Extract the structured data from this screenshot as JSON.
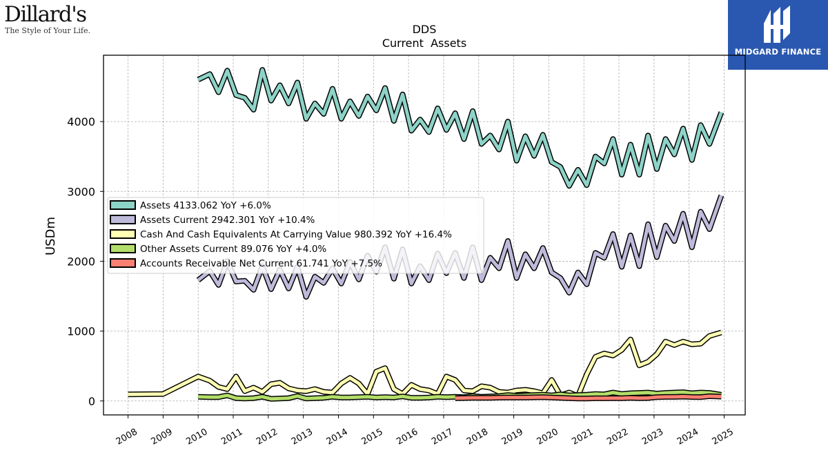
{
  "brand_left": {
    "name": "Dillard's",
    "tagline": "The Style of Your Life."
  },
  "brand_right": {
    "name": "MIDGARD FINANCE",
    "color": "#2a58b0"
  },
  "chart_data": {
    "type": "line",
    "title": "DDS",
    "subtitle": "Current  Assets",
    "ylabel": "USDm",
    "xlabel": "",
    "xlim": [
      2007.3,
      2025.6
    ],
    "ylim": [
      -200,
      4950
    ],
    "x_ticks": [
      2008,
      2009,
      2010,
      2011,
      2012,
      2013,
      2014,
      2015,
      2016,
      2017,
      2018,
      2019,
      2020,
      2021,
      2022,
      2023,
      2024,
      2025
    ],
    "y_ticks": [
      0,
      1000,
      2000,
      3000,
      4000
    ],
    "grid": true,
    "legend_position": "center-left",
    "series": [
      {
        "name": "Assets",
        "legend_label": "Assets  4133.062 YoY +6.0%",
        "color": "#8dd3c7",
        "x": [
          2010.0,
          2010.33,
          2010.58,
          2010.83,
          2011.08,
          2011.33,
          2011.58,
          2011.83,
          2012.08,
          2012.33,
          2012.58,
          2012.83,
          2013.08,
          2013.33,
          2013.58,
          2013.83,
          2014.08,
          2014.33,
          2014.58,
          2014.83,
          2015.08,
          2015.33,
          2015.58,
          2015.83,
          2016.08,
          2016.33,
          2016.58,
          2016.83,
          2017.08,
          2017.33,
          2017.58,
          2017.83,
          2018.08,
          2018.33,
          2018.58,
          2018.83,
          2019.08,
          2019.33,
          2019.58,
          2019.83,
          2020.08,
          2020.33,
          2020.58,
          2020.83,
          2021.08,
          2021.33,
          2021.58,
          2021.83,
          2022.08,
          2022.33,
          2022.58,
          2022.83,
          2023.08,
          2023.33,
          2023.58,
          2023.83,
          2024.08,
          2024.33,
          2024.58,
          2024.92
        ],
        "values": [
          4600,
          4680,
          4420,
          4730,
          4380,
          4340,
          4170,
          4740,
          4300,
          4520,
          4260,
          4560,
          4040,
          4260,
          4110,
          4470,
          4040,
          4290,
          4080,
          4360,
          4160,
          4480,
          4010,
          4390,
          3870,
          4030,
          3850,
          4190,
          3880,
          4120,
          3750,
          4150,
          3680,
          3800,
          3600,
          4000,
          3440,
          3790,
          3510,
          3810,
          3420,
          3350,
          3080,
          3310,
          3090,
          3500,
          3400,
          3750,
          3240,
          3670,
          3240,
          3800,
          3320,
          3750,
          3530,
          3900,
          3450,
          3950,
          3680,
          4133
        ]
      },
      {
        "name": "Assets Current",
        "legend_label": "Assets Current  2942.301 YoY +10.4%",
        "color": "#bebada",
        "x": [
          2010.0,
          2010.33,
          2010.58,
          2010.83,
          2011.08,
          2011.33,
          2011.58,
          2011.83,
          2012.08,
          2012.33,
          2012.58,
          2012.83,
          2013.08,
          2013.33,
          2013.58,
          2013.83,
          2014.08,
          2014.33,
          2014.58,
          2014.83,
          2015.08,
          2015.33,
          2015.58,
          2015.83,
          2016.08,
          2016.33,
          2016.58,
          2016.83,
          2017.08,
          2017.33,
          2017.58,
          2017.83,
          2018.08,
          2018.33,
          2018.58,
          2018.83,
          2019.08,
          2019.33,
          2019.58,
          2019.83,
          2020.08,
          2020.33,
          2020.58,
          2020.83,
          2021.08,
          2021.33,
          2021.58,
          2021.83,
          2022.08,
          2022.33,
          2022.58,
          2022.83,
          2023.08,
          2023.33,
          2023.58,
          2023.83,
          2024.08,
          2024.33,
          2024.58,
          2024.92
        ],
        "values": [
          1730,
          1860,
          1660,
          2000,
          1710,
          1720,
          1590,
          1930,
          1600,
          1880,
          1610,
          1920,
          1490,
          1780,
          1690,
          1900,
          1680,
          1990,
          1740,
          2080,
          1850,
          2200,
          1750,
          2170,
          1680,
          1930,
          1730,
          2110,
          1830,
          2120,
          1760,
          2200,
          1730,
          2050,
          1900,
          2290,
          1760,
          2100,
          1900,
          2190,
          1840,
          1760,
          1550,
          1840,
          1670,
          2120,
          2050,
          2390,
          1920,
          2370,
          1930,
          2530,
          2060,
          2510,
          2290,
          2680,
          2200,
          2710,
          2460,
          2942
        ]
      },
      {
        "name": "Cash And Cash Equivalents At Carrying Value",
        "legend_label": "Cash And Cash Equivalents At Carrying Value  980.392 YoY +16.4%",
        "color": "#ffffb3",
        "x": [
          2008.0,
          2009.0,
          2010.0,
          2010.33,
          2010.58,
          2010.83,
          2011.08,
          2011.33,
          2011.58,
          2011.83,
          2012.08,
          2012.33,
          2012.58,
          2012.83,
          2013.08,
          2013.33,
          2013.58,
          2013.83,
          2014.08,
          2014.33,
          2014.58,
          2014.83,
          2015.08,
          2015.33,
          2015.58,
          2015.83,
          2016.08,
          2016.33,
          2016.58,
          2016.83,
          2017.08,
          2017.33,
          2017.58,
          2017.83,
          2018.08,
          2018.33,
          2018.58,
          2018.83,
          2019.08,
          2019.33,
          2019.58,
          2019.83,
          2020.08,
          2020.33,
          2020.58,
          2020.83,
          2021.08,
          2021.33,
          2021.58,
          2021.83,
          2022.08,
          2022.33,
          2022.58,
          2022.83,
          2023.08,
          2023.33,
          2023.58,
          2023.83,
          2024.08,
          2024.33,
          2024.58,
          2024.92
        ],
        "values": [
          95,
          100,
          350,
          290,
          200,
          170,
          350,
          140,
          190,
          130,
          240,
          260,
          180,
          150,
          140,
          170,
          130,
          120,
          250,
          330,
          250,
          100,
          420,
          470,
          170,
          100,
          230,
          170,
          150,
          100,
          350,
          300,
          150,
          140,
          210,
          190,
          130,
          120,
          150,
          160,
          140,
          110,
          300,
          80,
          120,
          70,
          380,
          630,
          680,
          650,
          730,
          880,
          510,
          560,
          670,
          850,
          800,
          850,
          810,
          820,
          930,
          980
        ]
      },
      {
        "name": "Other Assets Current",
        "legend_label": "Other Assets Current  89.076 YoY +4.0%",
        "color": "#b3de69",
        "x": [
          2010.0,
          2010.33,
          2010.58,
          2010.83,
          2011.08,
          2011.33,
          2011.58,
          2011.83,
          2012.08,
          2012.33,
          2012.58,
          2012.83,
          2013.08,
          2013.33,
          2013.58,
          2013.83,
          2014.08,
          2014.33,
          2014.58,
          2014.83,
          2015.08,
          2015.33,
          2015.58,
          2015.83,
          2016.08,
          2016.33,
          2016.58,
          2016.83,
          2017.08,
          2017.33,
          2017.58,
          2017.83,
          2018.08,
          2018.33,
          2018.58,
          2018.83,
          2019.08,
          2019.33,
          2019.58,
          2019.83,
          2020.08,
          2020.33,
          2020.58,
          2020.83,
          2021.08,
          2021.33,
          2021.58,
          2021.83,
          2022.08,
          2022.33,
          2022.58,
          2022.83,
          2023.08,
          2023.33,
          2023.58,
          2023.83,
          2024.08,
          2024.33,
          2024.58,
          2024.92
        ],
        "values": [
          60,
          55,
          55,
          80,
          40,
          35,
          40,
          60,
          30,
          35,
          40,
          70,
          35,
          40,
          45,
          60,
          50,
          50,
          55,
          60,
          50,
          55,
          50,
          65,
          45,
          45,
          50,
          60,
          55,
          60,
          55,
          70,
          60,
          65,
          70,
          85,
          75,
          80,
          85,
          90,
          80,
          95,
          80,
          85,
          90,
          100,
          95,
          120,
          100,
          110,
          115,
          120,
          105,
          115,
          120,
          125,
          110,
          120,
          115,
          89
        ]
      },
      {
        "name": "Accounts Receivable Net Current",
        "legend_label": "Accounts Receivable Net Current  61.741 YoY +7.5%",
        "color": "#fb8072",
        "x": [
          2017.33,
          2017.58,
          2017.83,
          2018.08,
          2018.33,
          2018.58,
          2018.83,
          2019.08,
          2019.33,
          2019.58,
          2019.83,
          2020.08,
          2020.33,
          2020.58,
          2020.83,
          2021.08,
          2021.33,
          2021.58,
          2021.83,
          2022.08,
          2022.33,
          2022.58,
          2022.83,
          2023.08,
          2023.33,
          2023.58,
          2023.83,
          2024.08,
          2024.33,
          2024.58,
          2024.92
        ],
        "values": [
          40,
          42,
          45,
          45,
          45,
          48,
          50,
          50,
          50,
          52,
          55,
          50,
          45,
          40,
          35,
          35,
          38,
          38,
          40,
          40,
          45,
          40,
          42,
          55,
          58,
          58,
          62,
          57,
          55,
          68,
          62
        ]
      }
    ]
  }
}
